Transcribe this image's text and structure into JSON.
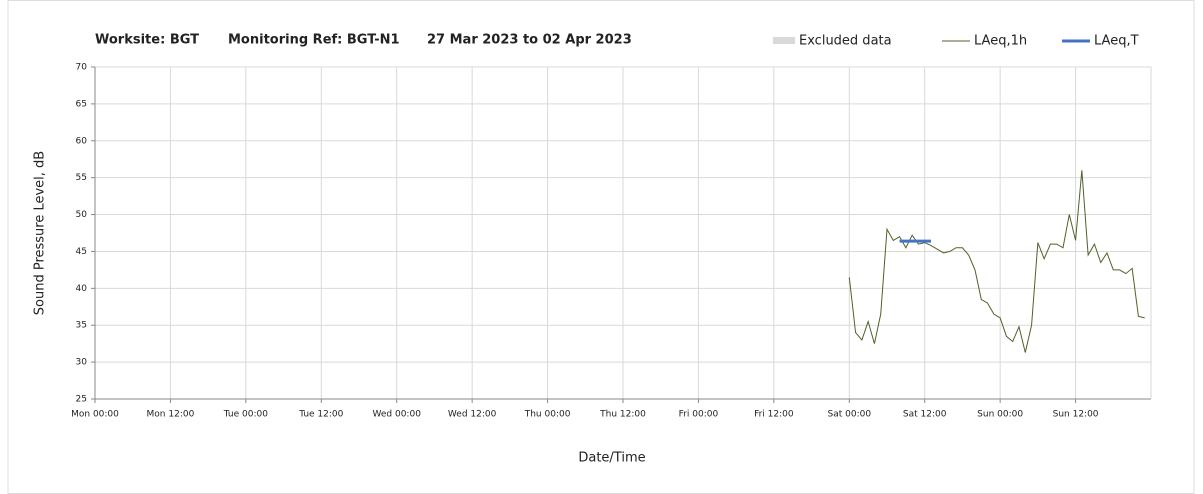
{
  "chart_data": {
    "type": "line",
    "title_parts": [
      "Worksite: BGT",
      "Monitoring Ref: BGT-N1",
      "27 Mar 2023 to 02 Apr 2023"
    ],
    "xlabel": "Date/Time",
    "ylabel": "Sound Pressure Level, dB",
    "xlim": [
      0,
      168
    ],
    "ylim": [
      25,
      70
    ],
    "xticks": [
      {
        "value": 0,
        "label": "Mon 00:00"
      },
      {
        "value": 12,
        "label": "Mon 12:00"
      },
      {
        "value": 24,
        "label": "Tue 00:00"
      },
      {
        "value": 36,
        "label": "Tue 12:00"
      },
      {
        "value": 48,
        "label": "Wed 00:00"
      },
      {
        "value": 60,
        "label": "Wed 12:00"
      },
      {
        "value": 72,
        "label": "Thu 00:00"
      },
      {
        "value": 84,
        "label": "Thu 12:00"
      },
      {
        "value": 96,
        "label": "Fri 00:00"
      },
      {
        "value": 108,
        "label": "Fri 12:00"
      },
      {
        "value": 120,
        "label": "Sat 00:00"
      },
      {
        "value": 132,
        "label": "Sat 12:00"
      },
      {
        "value": 144,
        "label": "Sun 00:00"
      },
      {
        "value": 156,
        "label": "Sun 12:00"
      }
    ],
    "yticks": [
      25,
      30,
      35,
      40,
      45,
      50,
      55,
      60,
      65,
      70
    ],
    "grid": true,
    "excluded": {
      "name": "Excluded data",
      "color": "#d9d9d9"
    },
    "series": [
      {
        "name": "LAeq,1h",
        "color": "#4f6228",
        "width": 1,
        "x": [
          120,
          121,
          122,
          123,
          124,
          125,
          126,
          127,
          128,
          129,
          130,
          131,
          132,
          133,
          134,
          135,
          136,
          137,
          138,
          139,
          140,
          141,
          142,
          143,
          144,
          145,
          146,
          147,
          148,
          149,
          150,
          151,
          152,
          153,
          154,
          155,
          156,
          157,
          158,
          159,
          160,
          161,
          162,
          163,
          164,
          165,
          166,
          167
        ],
        "values": [
          41.5,
          34,
          33,
          35.5,
          32.5,
          36.5,
          48,
          46.5,
          47,
          45.5,
          47.2,
          46,
          46.2,
          45.8,
          45.3,
          44.8,
          45,
          45.5,
          45.5,
          44.5,
          42.5,
          38.5,
          38,
          36.5,
          36,
          33.5,
          32.8,
          34.8,
          31.3,
          35,
          46.2,
          44,
          46,
          46,
          45.5,
          50,
          46.5,
          56,
          44.5,
          46,
          43.5,
          44.8,
          42.5,
          42.5,
          42,
          42.7,
          36.2,
          36
        ]
      },
      {
        "name": "LAeq,T",
        "color": "#4472c4",
        "width": 3,
        "x": [
          128,
          133
        ],
        "values": [
          46.4,
          46.4
        ]
      }
    ]
  }
}
